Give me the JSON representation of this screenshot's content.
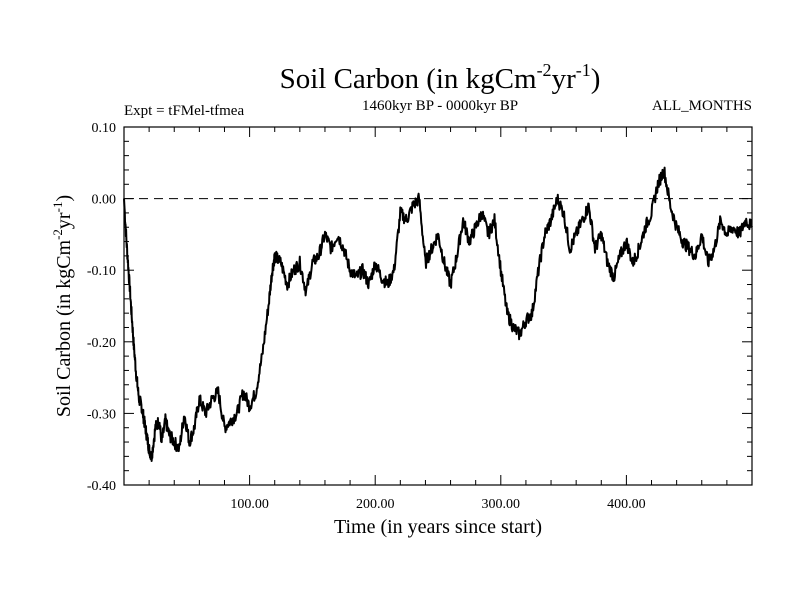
{
  "chart_data": {
    "type": "line",
    "title": "Soil Carbon (in kgCm",
    "title_sup1": "-2",
    "title_mid": "yr",
    "title_sup2": "-1",
    "title_end": ")",
    "subtitle_left": "Expt = tFMel-tfmea",
    "subtitle_center": "1460kyr BP - 0000kyr BP",
    "subtitle_right": "ALL_MONTHS",
    "xlabel": "Time (in years since start)",
    "ylabel_parts": [
      "Soil Carbon (in kgCm",
      "-2",
      "yr",
      "-1",
      ")"
    ],
    "xlim": [
      0,
      500
    ],
    "ylim": [
      -0.4,
      0.1
    ],
    "xticks": [
      100,
      200,
      300,
      400
    ],
    "xtick_labels": [
      "100.00",
      "200.00",
      "300.00",
      "400.00"
    ],
    "yticks": [
      0.1,
      0.0,
      -0.1,
      -0.2,
      -0.3,
      -0.4
    ],
    "ytick_labels": [
      "0.10",
      "0.00",
      "-0.10",
      "-0.20",
      "-0.30",
      "-0.40"
    ],
    "reference_line": 0.0,
    "series": [
      {
        "name": "Soil Carbon",
        "x": [
          0,
          2,
          4,
          6,
          8,
          10,
          12,
          14,
          16,
          18,
          20,
          22,
          25,
          28,
          30,
          33,
          36,
          40,
          44,
          48,
          52,
          56,
          60,
          65,
          70,
          75,
          80,
          85,
          90,
          95,
          100,
          105,
          110,
          115,
          118,
          120,
          125,
          130,
          135,
          140,
          145,
          150,
          155,
          160,
          165,
          170,
          175,
          180,
          185,
          190,
          195,
          200,
          205,
          210,
          215,
          220,
          225,
          230,
          235,
          240,
          245,
          250,
          255,
          260,
          265,
          270,
          275,
          280,
          285,
          290,
          295,
          300,
          305,
          310,
          315,
          320,
          325,
          330,
          335,
          340,
          345,
          350,
          355,
          360,
          365,
          370,
          375,
          380,
          385,
          390,
          395,
          400,
          405,
          410,
          415,
          420,
          425,
          430,
          435,
          440,
          445,
          450,
          455,
          460,
          465,
          470,
          475,
          480,
          485,
          490,
          495,
          500
        ],
        "y": [
          0.0,
          -0.06,
          -0.11,
          -0.16,
          -0.21,
          -0.25,
          -0.28,
          -0.29,
          -0.31,
          -0.33,
          -0.35,
          -0.36,
          -0.32,
          -0.31,
          -0.34,
          -0.31,
          -0.33,
          -0.34,
          -0.35,
          -0.3,
          -0.34,
          -0.32,
          -0.28,
          -0.3,
          -0.28,
          -0.27,
          -0.32,
          -0.31,
          -0.3,
          -0.27,
          -0.29,
          -0.27,
          -0.22,
          -0.15,
          -0.1,
          -0.08,
          -0.09,
          -0.12,
          -0.1,
          -0.09,
          -0.13,
          -0.09,
          -0.08,
          -0.05,
          -0.07,
          -0.05,
          -0.07,
          -0.1,
          -0.11,
          -0.1,
          -0.12,
          -0.09,
          -0.11,
          -0.12,
          -0.1,
          -0.02,
          -0.03,
          -0.01,
          0.0,
          -0.09,
          -0.07,
          -0.05,
          -0.09,
          -0.12,
          -0.08,
          -0.03,
          -0.06,
          -0.04,
          -0.02,
          -0.05,
          -0.03,
          -0.1,
          -0.16,
          -0.18,
          -0.19,
          -0.17,
          -0.16,
          -0.1,
          -0.05,
          -0.03,
          0.0,
          -0.02,
          -0.07,
          -0.05,
          -0.03,
          -0.01,
          -0.07,
          -0.05,
          -0.09,
          -0.11,
          -0.08,
          -0.06,
          -0.09,
          -0.07,
          -0.04,
          -0.02,
          0.02,
          0.04,
          -0.01,
          -0.04,
          -0.06,
          -0.07,
          -0.08,
          -0.05,
          -0.09,
          -0.07,
          -0.03,
          -0.05,
          -0.04,
          -0.05,
          -0.03,
          -0.04
        ]
      }
    ]
  }
}
